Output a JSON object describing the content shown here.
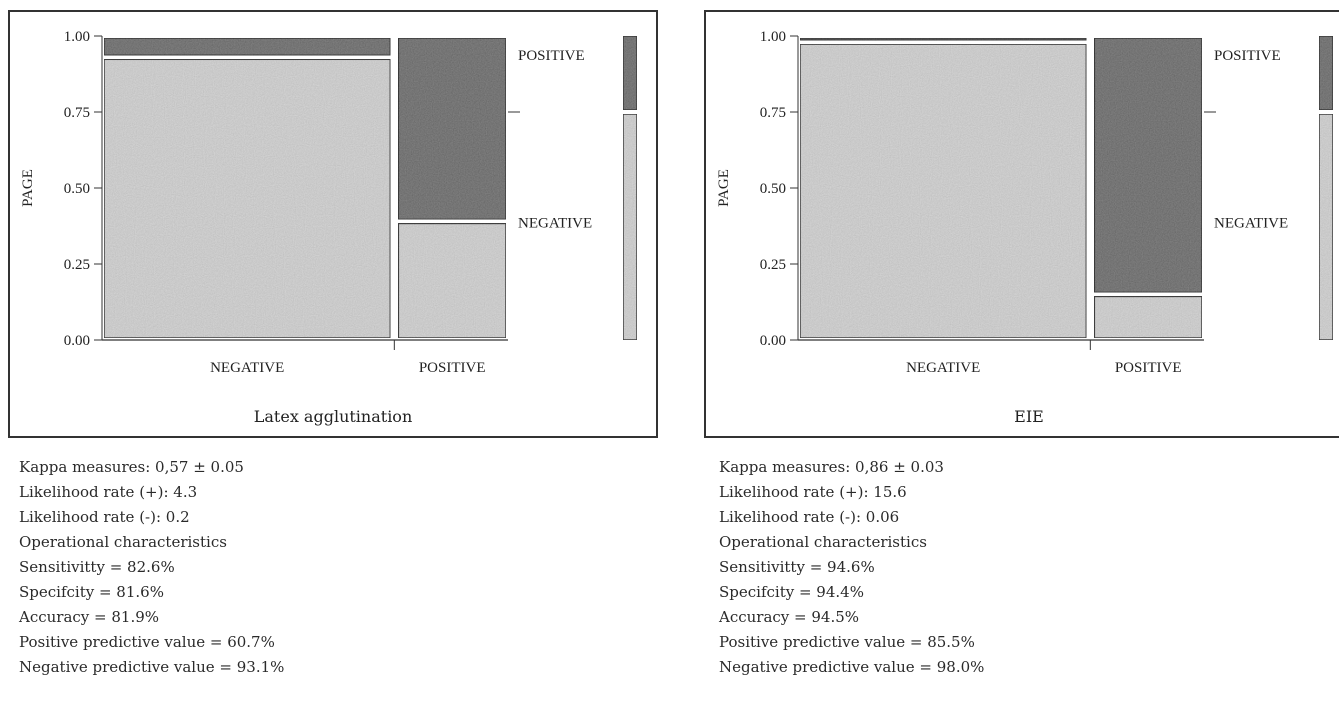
{
  "colors": {
    "light_fill": "#dcdcdc",
    "dark_fill": "#8a8a8a",
    "border": "#444444"
  },
  "chart_data": [
    {
      "type": "mosaic",
      "ylabel": "PAGE",
      "xlabel": "Latex agglutination",
      "yticks": [
        "0.00",
        "0.25",
        "0.50",
        "0.75",
        "1.00"
      ],
      "ylim": [
        0,
        1
      ],
      "categories": [
        "NEGATIVE",
        "POSITIVE"
      ],
      "column_widths": [
        0.72,
        0.28
      ],
      "series": [
        {
          "name": "POSITIVE",
          "values": [
            0.07,
            0.61
          ]
        },
        {
          "name": "NEGATIVE",
          "values": [
            0.93,
            0.39
          ]
        }
      ],
      "marginal": [
        {
          "label": "POSITIVE",
          "value": 0.25
        },
        {
          "label": "NEGATIVE",
          "value": 0.75
        }
      ]
    },
    {
      "type": "mosaic",
      "ylabel": "PAGE",
      "xlabel": "EIE",
      "yticks": [
        "0.00",
        "0.25",
        "0.50",
        "0.75",
        "1.00"
      ],
      "ylim": [
        0,
        1
      ],
      "categories": [
        "NEGATIVE",
        "POSITIVE"
      ],
      "column_widths": [
        0.72,
        0.28
      ],
      "series": [
        {
          "name": "POSITIVE",
          "values": [
            0.02,
            0.85
          ]
        },
        {
          "name": "NEGATIVE",
          "values": [
            0.98,
            0.15
          ]
        }
      ],
      "marginal": [
        {
          "label": "POSITIVE",
          "value": 0.25
        },
        {
          "label": "NEGATIVE",
          "value": 0.75
        }
      ]
    }
  ],
  "stats": [
    {
      "lines": [
        "Kappa measures: 0,57 ± 0.05",
        "Likelihood rate (+): 4.3",
        "Likelihood rate (-): 0.2",
        "Operational characteristics",
        "Sensitivitty = 82.6%",
        "Specifcity = 81.6%",
        "Accuracy = 81.9%",
        "Positive predictive value = 60.7%",
        "Negative predictive value = 93.1%"
      ]
    },
    {
      "lines": [
        "Kappa measures: 0,86 ± 0.03",
        "Likelihood rate (+): 15.6",
        "Likelihood rate (-): 0.06",
        "Operational characteristics",
        "Sensitivitty = 94.6%",
        "Specifcity = 94.4%",
        "Accuracy = 94.5%",
        "Positive predictive value = 85.5%",
        "Negative predictive value = 98.0%"
      ]
    }
  ]
}
